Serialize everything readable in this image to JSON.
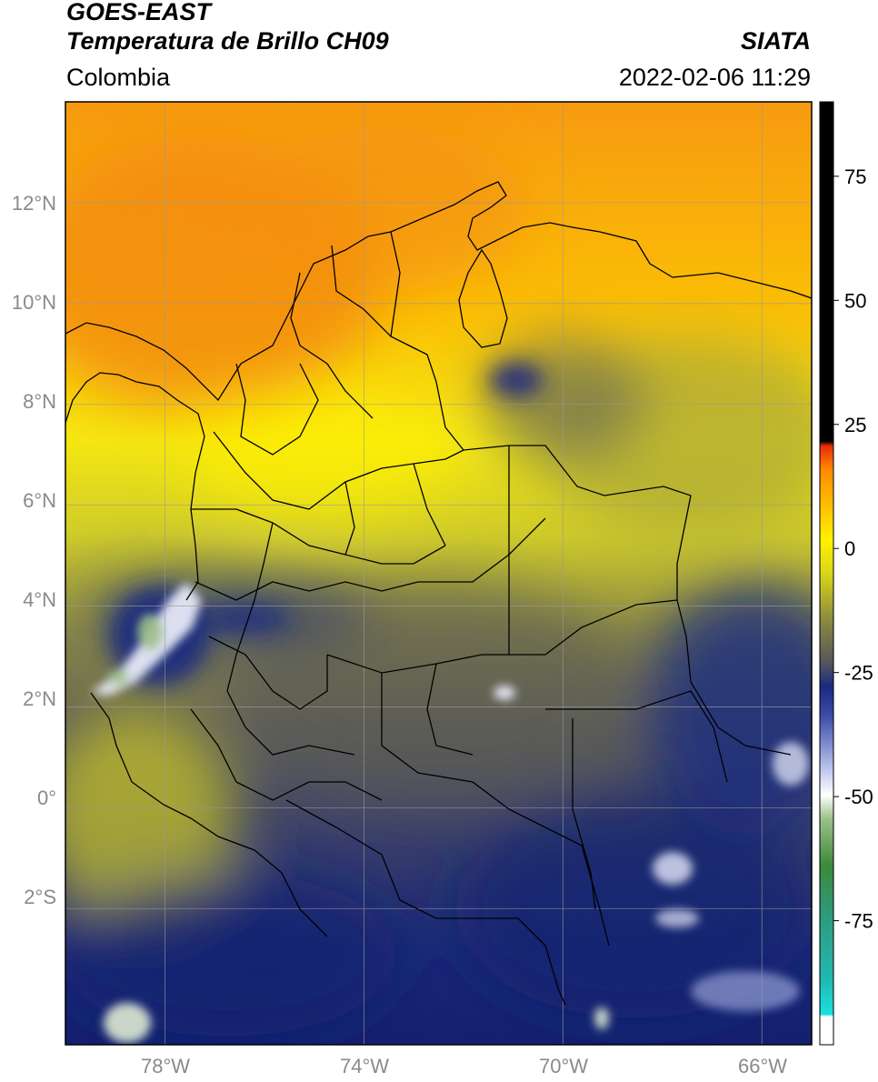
{
  "header": {
    "satellite": "GOES-EAST",
    "product": "Temperatura de Brillo CH09",
    "agency": "SIATA",
    "region": "Colombia",
    "datetime": "2022-02-06 11:29"
  },
  "map": {
    "lat_labels": [
      "12°N",
      "10°N",
      "8°N",
      "6°N",
      "4°N",
      "2°N",
      "0°",
      "2°S"
    ],
    "lon_labels": [
      "78°W",
      "74°W",
      "70°W",
      "66°W"
    ],
    "lon_range": [
      -80,
      -65
    ],
    "lat_range": [
      -4.7,
      14
    ]
  },
  "colorbar": {
    "ticks": [
      "75",
      "50",
      "25",
      "0",
      "-25",
      "-50",
      "-75"
    ],
    "tick_values": [
      75,
      50,
      25,
      0,
      -25,
      -50,
      -75
    ],
    "range": [
      -100,
      90
    ],
    "colors": {
      "white": "#ffffff",
      "cyan": "#19d7d7",
      "teal": "#2e9a7a",
      "green": "#3c8a3a",
      "light_green": "#dfead4",
      "light_blue": "#aab4e6",
      "navy": "#1a2a80",
      "gray": "#55565c",
      "olive": "#a8a63a",
      "yellow": "#fff200",
      "orange": "#ffa000",
      "red": "#e82a0a",
      "black": "#000000"
    }
  }
}
